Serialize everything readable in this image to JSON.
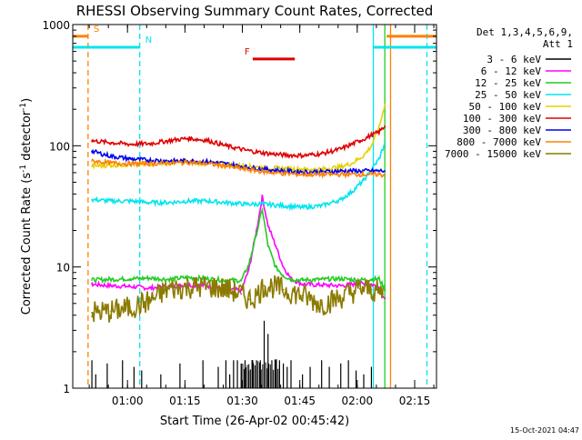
{
  "chart_data": {
    "type": "line",
    "title": "RHESSI Observing Summary Count Rates, Corrected",
    "xlabel": "Start Time (26-Apr-02 00:45:42)",
    "ylabel": "Corrected Count Rate (s⁻¹ detector⁻¹)",
    "ylabel_parts": {
      "base": "Corrected Count Rate (s",
      "sup1": "-1",
      "mid": " detector",
      "sup2": "-1",
      "end": ")"
    },
    "y_scale": "log",
    "ylim": [
      1,
      1000
    ],
    "y_ticks": [
      {
        "value": 1,
        "label": "1"
      },
      {
        "value": 10,
        "label": "10"
      },
      {
        "value": 100,
        "label": "100"
      },
      {
        "value": 1000,
        "label": "1000"
      }
    ],
    "x_unit": "minutes after 00:45:42",
    "xlim": [
      0,
      95
    ],
    "x_ticks": [
      {
        "value": 14.3,
        "label": "01:00"
      },
      {
        "value": 29.3,
        "label": "01:15"
      },
      {
        "value": 44.3,
        "label": "01:30"
      },
      {
        "value": 59.3,
        "label": "01:45"
      },
      {
        "value": 74.3,
        "label": "02:00"
      },
      {
        "value": 89.3,
        "label": "02:15"
      }
    ],
    "grid": false,
    "legend_position": "right",
    "legend_header": [
      "Det 1,3,4,5,6,9,",
      "Att 1"
    ],
    "timestamp": "15-Oct-2021 04:47",
    "annotations": [
      {
        "label": "S",
        "color": "#ff8000",
        "y": 800,
        "x": [
          0,
          4
        ]
      },
      {
        "label": "N",
        "color": "#00e5ee",
        "y": 650,
        "x": [
          0,
          17.5
        ]
      },
      {
        "label": "F",
        "color": "#e00000",
        "y": 520,
        "x": [
          47,
          58
        ]
      }
    ],
    "top_bars": [
      {
        "color": "#00e5ee",
        "y": 650,
        "x": [
          78.5,
          95
        ]
      },
      {
        "color": "#ff8000",
        "y": 800,
        "x": [
          82,
          95
        ]
      }
    ],
    "vertical_lines": [
      {
        "x": 4,
        "color": "#ff8000",
        "style": "dashed"
      },
      {
        "x": 17.5,
        "color": "#00e5ee",
        "style": "dashed"
      },
      {
        "x": 78.5,
        "color": "#00e5ee",
        "style": "solid"
      },
      {
        "x": 81.5,
        "color": "#22cc22",
        "style": "solid"
      },
      {
        "x": 83,
        "color": "#ff8000",
        "style": "solid"
      },
      {
        "x": 92.5,
        "color": "#00e5ee",
        "style": "dashed"
      }
    ],
    "series": [
      {
        "name": "3 - 6 keV",
        "color": "#000000",
        "render": "spikes",
        "x": [
          5,
          6,
          9,
          13,
          16,
          18,
          23,
          28,
          34,
          38,
          40,
          41,
          42,
          43,
          44,
          45,
          46,
          47,
          48,
          49,
          50,
          51,
          52,
          53,
          54,
          55,
          56,
          57,
          60,
          62,
          65,
          67,
          70,
          72,
          74,
          76,
          78
        ],
        "y": [
          1.7,
          1.3,
          1.6,
          1.7,
          1.5,
          1.4,
          1.3,
          1.6,
          1.7,
          1.5,
          1.7,
          1.3,
          1.7,
          1.7,
          1.6,
          1.7,
          1.4,
          1.7,
          1.7,
          1.7,
          3.6,
          2.8,
          1.7,
          1.7,
          1.7,
          1.6,
          1.5,
          1.7,
          1.3,
          1.5,
          1.7,
          1.5,
          1.6,
          1.7,
          1.4,
          1.3,
          1.5
        ]
      },
      {
        "name": "6 - 12 keV",
        "color": "#ff00ff",
        "x": [
          5,
          10,
          15,
          20,
          25,
          30,
          35,
          40,
          44,
          46,
          48,
          49.5,
          51,
          53,
          55,
          57,
          60,
          65,
          70,
          75,
          78,
          80,
          81.5
        ],
        "y": [
          7.2,
          7.0,
          6.9,
          6.7,
          6.9,
          7.1,
          7.0,
          6.6,
          6.4,
          9.5,
          20,
          38,
          22,
          15,
          10,
          8,
          7.2,
          7.1,
          7.0,
          7.3,
          7.2,
          6.8,
          5.5
        ]
      },
      {
        "name": "12 - 25 keV",
        "color": "#22cc22",
        "x": [
          5,
          10,
          15,
          20,
          25,
          30,
          35,
          40,
          44,
          46,
          48,
          49.5,
          51,
          53,
          55,
          57,
          60,
          65,
          70,
          75,
          78,
          80,
          81.5
        ],
        "y": [
          7.8,
          7.9,
          8.0,
          8.1,
          7.9,
          8.2,
          8.0,
          7.8,
          7.7,
          10.5,
          19,
          30,
          15,
          10,
          8.5,
          7.9,
          7.8,
          7.9,
          8.0,
          7.8,
          7.9,
          8.0,
          6.5
        ]
      },
      {
        "name": "25 - 50 keV",
        "color": "#00e5ee",
        "x": [
          5,
          10,
          15,
          20,
          25,
          30,
          35,
          40,
          45,
          50,
          55,
          60,
          65,
          70,
          73,
          76,
          78,
          80,
          81.5
        ],
        "y": [
          36,
          35,
          35,
          34,
          34,
          35,
          35,
          34,
          33,
          33,
          32,
          31,
          32,
          36,
          42,
          52,
          63,
          78,
          105
        ]
      },
      {
        "name": "50 - 100 keV",
        "color": "#e5d100",
        "x": [
          5,
          10,
          15,
          20,
          25,
          30,
          35,
          40,
          45,
          50,
          55,
          60,
          65,
          70,
          73,
          76,
          78,
          80,
          81.5
        ],
        "y": [
          68,
          69,
          70,
          71,
          72,
          73,
          72,
          70,
          68,
          66,
          65,
          64,
          64,
          67,
          72,
          83,
          100,
          140,
          220
        ]
      },
      {
        "name": "100 - 300 keV",
        "color": "#e00000",
        "x": [
          5,
          10,
          15,
          20,
          25,
          30,
          35,
          40,
          45,
          50,
          55,
          60,
          65,
          70,
          75,
          78,
          80,
          81.5
        ],
        "y": [
          110,
          106,
          103,
          104,
          110,
          115,
          111,
          100,
          92,
          87,
          84,
          83,
          86,
          94,
          110,
          122,
          130,
          145
        ]
      },
      {
        "name": "300 - 800 keV",
        "color": "#0000ee",
        "x": [
          5,
          10,
          15,
          20,
          25,
          30,
          35,
          40,
          45,
          50,
          55,
          60,
          65,
          70,
          75,
          78,
          80,
          81.5
        ],
        "y": [
          90,
          82,
          78,
          76,
          75,
          75,
          74,
          71,
          67,
          64,
          62,
          61,
          61,
          62,
          62,
          62,
          62,
          62
        ]
      },
      {
        "name": "800 - 7000 keV",
        "color": "#ff8000",
        "x": [
          5,
          10,
          15,
          20,
          25,
          30,
          35,
          40,
          45,
          50,
          55,
          60,
          65,
          70,
          75,
          78,
          80,
          81.5
        ],
        "y": [
          75,
          72,
          71,
          71,
          72,
          73,
          71,
          68,
          64,
          61,
          59,
          58,
          58,
          58,
          58,
          58,
          58,
          57
        ]
      },
      {
        "name": "7000 - 15000 keV",
        "color": "#8b7a00",
        "render": "noisy",
        "x": [
          5,
          10,
          15,
          20,
          25,
          30,
          35,
          40,
          44,
          46,
          48,
          50,
          52,
          55,
          60,
          65,
          70,
          75,
          78,
          81
        ],
        "y": [
          4.2,
          4.3,
          4.6,
          5.2,
          6.6,
          6.8,
          6.9,
          6.6,
          6.0,
          5.4,
          5.8,
          7.0,
          6.9,
          6.5,
          5.8,
          4.9,
          5.6,
          6.6,
          6.5,
          6.0
        ]
      }
    ]
  }
}
